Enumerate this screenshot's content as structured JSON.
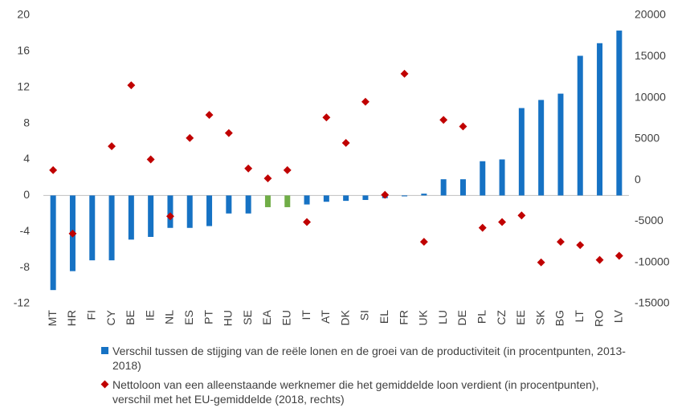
{
  "chart_data": {
    "type": "bar",
    "categories": [
      "MT",
      "HR",
      "FI",
      "CY",
      "BE",
      "IE",
      "NL",
      "ES",
      "PT",
      "HU",
      "SE",
      "EA",
      "EU",
      "IT",
      "AT",
      "DK",
      "SI",
      "EL",
      "FR",
      "UK",
      "LU",
      "DE",
      "PL",
      "CZ",
      "EE",
      "SK",
      "BG",
      "LT",
      "RO",
      "LV"
    ],
    "series": [
      {
        "name": "Verschil tussen de stijging van de reële lonen en de groei van de productiviteit (in procentpunten, 2013-2018)",
        "type": "bar",
        "color": "#1672c4",
        "colors": [
          "#1672c4",
          "#1672c4",
          "#1672c4",
          "#1672c4",
          "#1672c4",
          "#1672c4",
          "#1672c4",
          "#1672c4",
          "#1672c4",
          "#1672c4",
          "#1672c4",
          "#70ad47",
          "#70ad47",
          "#1672c4",
          "#1672c4",
          "#1672c4",
          "#1672c4",
          "#1672c4",
          "#1672c4",
          "#1672c4",
          "#1672c4",
          "#1672c4",
          "#1672c4",
          "#1672c4",
          "#1672c4",
          "#1672c4",
          "#1672c4",
          "#1672c4",
          "#1672c4",
          "#1672c4"
        ],
        "values": [
          -10.5,
          -8.4,
          -7.2,
          -7.2,
          -4.9,
          -4.6,
          -3.6,
          -3.6,
          -3.4,
          -2.0,
          -2.0,
          -1.3,
          -1.3,
          -1.0,
          -0.7,
          -0.6,
          -0.5,
          -0.3,
          -0.1,
          0.2,
          1.8,
          1.8,
          3.8,
          4.0,
          9.7,
          10.6,
          11.3,
          15.5,
          16.9,
          18.3
        ]
      },
      {
        "name": "Nettoloon van een alleenstaande werknemer die het gemiddelde loon verdient (in procentpunten), verschil met het EU-gemiddelde (2018, rechts)",
        "type": "scatter",
        "axis": "y2",
        "color": "#c00000",
        "values": [
          1200,
          -6500,
          null,
          4100,
          11500,
          2500,
          -4400,
          5100,
          7900,
          5700,
          1400,
          200,
          1200,
          -5100,
          7600,
          4500,
          9500,
          -1800,
          12900,
          -7500,
          7300,
          6500,
          -5800,
          -5100,
          -4300,
          -10000,
          -7500,
          -7900,
          -9700,
          -9200
        ]
      }
    ],
    "ylim": [
      -12,
      20
    ],
    "yticks": [
      -12,
      -8,
      -4,
      0,
      4,
      8,
      12,
      16,
      20
    ],
    "y2lim": [
      -15000,
      20000
    ],
    "y2ticks": [
      -15000,
      -10000,
      -5000,
      0,
      5000,
      10000,
      15000,
      20000
    ]
  }
}
